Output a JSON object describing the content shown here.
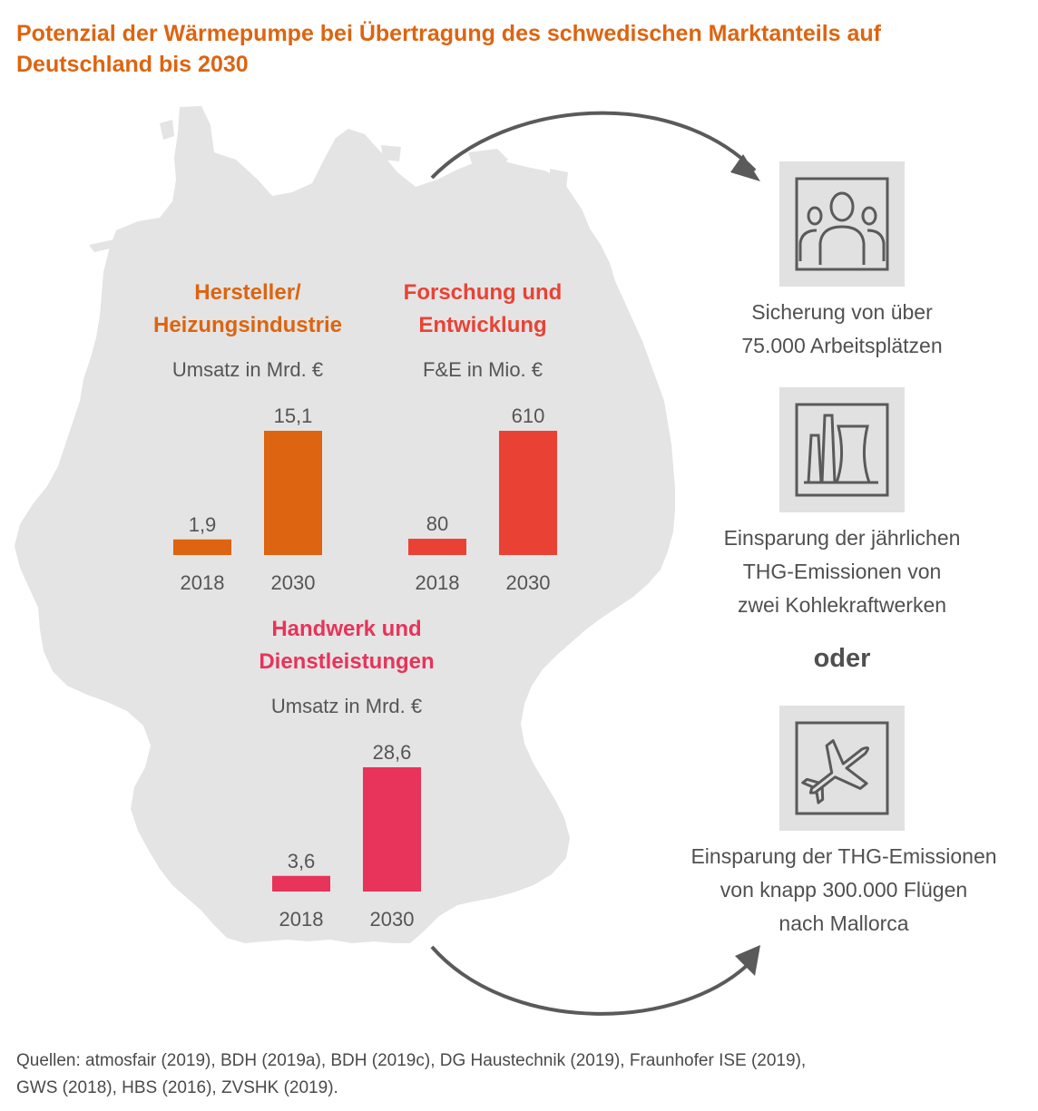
{
  "title": {
    "line1": "Potenzial der Wärmepumpe bei Übertragung des schwedischen Marktanteils auf",
    "line2": "Deutschland bis 2030"
  },
  "colors": {
    "title": "#dd6410",
    "map": "#e4e4e4",
    "icon_bg": "#e1e1e1",
    "icon_stroke": "#5a5a5a",
    "arrow": "#5a5a5a"
  },
  "chart_data": [
    {
      "type": "bar",
      "title_line1": "Hersteller/",
      "title_line2": "Heizungsindustrie",
      "unit_label": "Umsatz in Mrd. €",
      "categories": [
        "2018",
        "2030"
      ],
      "values": [
        1.9,
        15.1
      ],
      "value_labels": [
        "1,9",
        "15,1"
      ],
      "color": "#dd6410"
    },
    {
      "type": "bar",
      "title_line1": "Forschung und",
      "title_line2": "Entwicklung",
      "unit_label": "F&E in Mio. €",
      "categories": [
        "2018",
        "2030"
      ],
      "values": [
        80,
        610
      ],
      "value_labels": [
        "80",
        "610"
      ],
      "color": "#e94235"
    },
    {
      "type": "bar",
      "title_line1": "Handwerk und",
      "title_line2": "Dienstleistungen",
      "unit_label": "Umsatz in Mrd. €",
      "categories": [
        "2018",
        "2030"
      ],
      "values": [
        3.6,
        28.6
      ],
      "value_labels": [
        "3,6",
        "28,6"
      ],
      "color": "#e8335a"
    }
  ],
  "effects": [
    {
      "icon": "people-icon",
      "line1": "Sicherung von über",
      "line2": "75.000 Arbeitsplätzen"
    },
    {
      "icon": "power-plant-icon",
      "line1": "Einsparung der jährlichen",
      "line2": "THG-Emissionen von",
      "line3": "zwei Kohlekraftwerken"
    },
    {
      "icon": "airplane-icon",
      "line1": "Einsparung der THG-Emissionen",
      "line2": "von knapp 300.000 Flügen",
      "line3": "nach Mallorca"
    }
  ],
  "separator": "oder",
  "source": {
    "line1": "Quellen: atmosfair (2019), BDH (2019a), BDH (2019c), DG Haustechnik (2019), Fraunhofer ISE (2019),",
    "line2": "GWS (2018), HBS (2016), ZVSHK (2019)."
  }
}
